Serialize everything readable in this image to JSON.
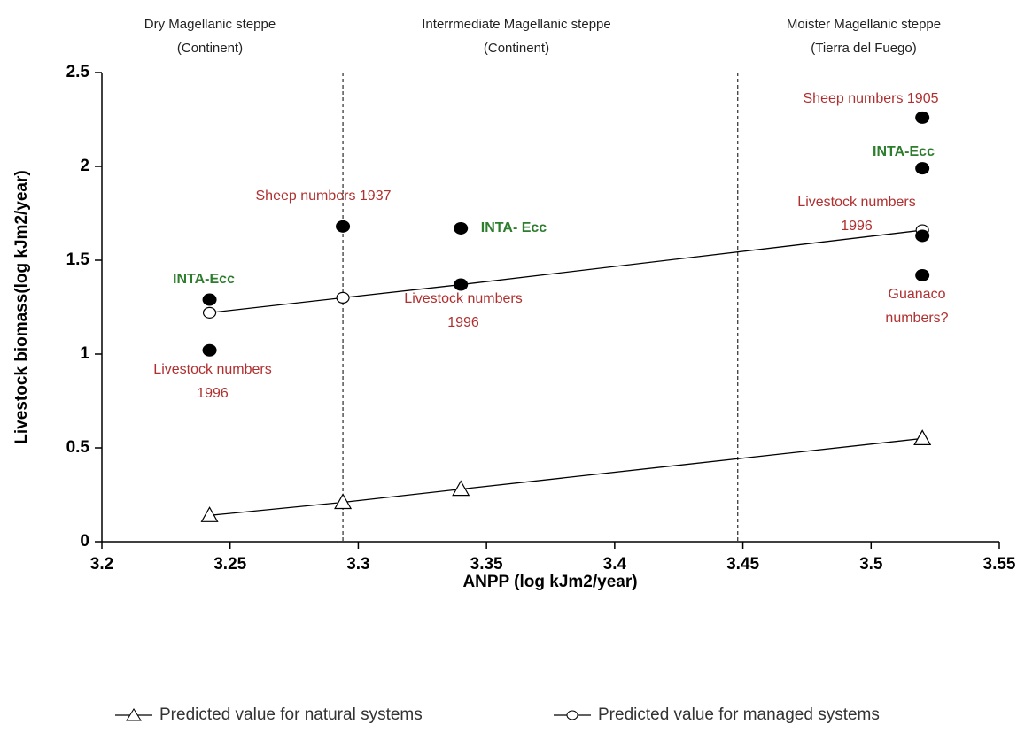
{
  "chart_data": {
    "type": "scatter",
    "xlabel": "ANPP (log kJm2/year)",
    "ylabel": "Livestock biomass(log kJm2/year)",
    "xlim": [
      3.2,
      3.55
    ],
    "xticks": [
      3.2,
      3.25,
      3.3,
      3.35,
      3.4,
      3.45,
      3.5,
      3.55
    ],
    "ylim": [
      0,
      2.5
    ],
    "yticks": [
      0,
      0.5,
      1,
      1.5,
      2,
      2.5
    ],
    "reference_lines_x": [
      3.294,
      3.448
    ],
    "regions": [
      [
        "Dry Magellanic steppe",
        "(Continent)"
      ],
      [
        "Interrmediate Magellanic steppe",
        "(Continent)"
      ],
      [
        "Moister Magellanic steppe",
        "(Tierra del Fuego)"
      ]
    ],
    "series": [
      {
        "name": "Predicted value for natural systems",
        "color": "#000000",
        "marker": "triangle",
        "line": true,
        "x": [
          3.242,
          3.294,
          3.34,
          3.52
        ],
        "values": [
          0.14,
          0.21,
          0.28,
          0.55
        ]
      },
      {
        "name": "Predicted value for managed systems",
        "color": "#000000",
        "marker": "circle",
        "line": true,
        "x": [
          3.242,
          3.294,
          3.34,
          3.52
        ],
        "values": [
          1.22,
          1.3,
          1.37,
          1.66
        ]
      },
      {
        "color": "#000000",
        "marker": "filled",
        "line": false,
        "x": [
          3.242,
          3.242,
          3.294,
          3.34,
          3.34,
          3.52,
          3.52,
          3.52,
          3.52
        ],
        "values": [
          1.29,
          1.02,
          1.68,
          1.67,
          1.37,
          2.26,
          1.99,
          1.63,
          1.42
        ]
      }
    ],
    "annotations": [
      {
        "lines": [
          "Sheep numbers 1905"
        ],
        "color": "#b03030"
      },
      {
        "lines": [
          "INTA-Ecc"
        ],
        "color": "#2e7d2e"
      },
      {
        "lines": [
          "Livestock numbers",
          "1996"
        ],
        "color": "#b03030"
      },
      {
        "lines": [
          "Guanaco",
          "numbers?"
        ],
        "color": "#b03030"
      },
      {
        "lines": [
          "Sheep numbers 1937"
        ],
        "color": "#b03030"
      },
      {
        "lines": [
          "INTA- Ecc"
        ],
        "color": "#2e7d2e"
      },
      {
        "lines": [
          "Livestock numbers",
          "1996"
        ],
        "color": "#b03030"
      },
      {
        "lines": [
          "INTA-Ecc"
        ],
        "color": "#2e7d2e"
      },
      {
        "lines": [
          "Livestock numbers",
          "1996"
        ],
        "color": "#b03030"
      }
    ]
  }
}
